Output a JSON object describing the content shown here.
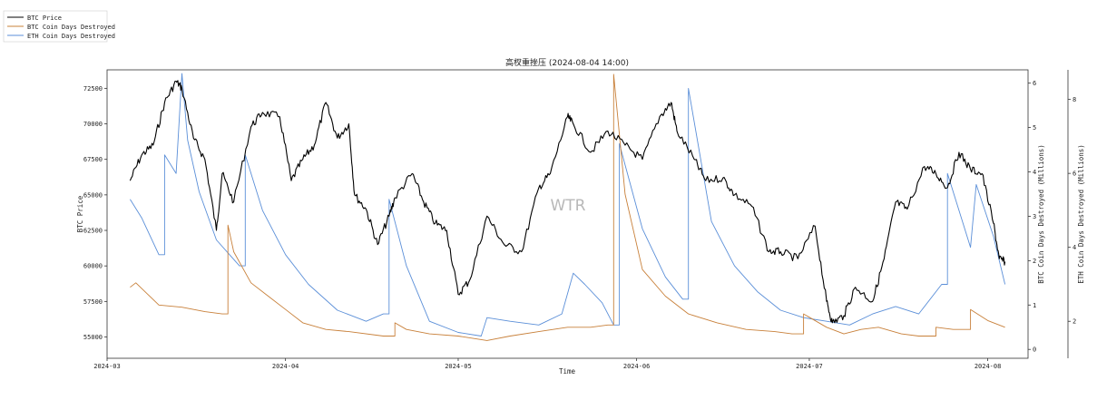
{
  "chart_data": {
    "type": "line",
    "title": "高杈重挫压 (2024-08-04 14:00)",
    "xlabel": "Time",
    "ylabel_left": "BTC Price",
    "ylabel_right1": "BTC Coin Days Destroyed (Millions)",
    "ylabel_right2": "ETH Coin Days Destroyed (Millions)",
    "watermark": "WTR",
    "legend_position": "top-left",
    "grid": false,
    "x_range": [
      "2024-03-01",
      "2024-08-08"
    ],
    "x_ticks": [
      "2024-03",
      "2024-04",
      "2024-05",
      "2024-06",
      "2024-07",
      "2024-08"
    ],
    "y_left": {
      "range": [
        53500,
        73800
      ],
      "ticks": [
        55000,
        57500,
        60000,
        62500,
        65000,
        67500,
        70000,
        72500
      ]
    },
    "y_right1": {
      "range": [
        -0.2,
        6.3
      ],
      "ticks": [
        0,
        1,
        2,
        3,
        4,
        5,
        6
      ]
    },
    "y_right2": {
      "range": [
        1.0,
        8.8
      ],
      "ticks": [
        2,
        4,
        6,
        8
      ]
    },
    "series": [
      {
        "name": "BTC Price",
        "axis": "left",
        "color": "#000000",
        "x": [
          "2024-03-05",
          "2024-03-07",
          "2024-03-09",
          "2024-03-11",
          "2024-03-13",
          "2024-03-14",
          "2024-03-16",
          "2024-03-18",
          "2024-03-20",
          "2024-03-21",
          "2024-03-23",
          "2024-03-26",
          "2024-03-28",
          "2024-03-31",
          "2024-04-02",
          "2024-04-04",
          "2024-04-06",
          "2024-04-08",
          "2024-04-10",
          "2024-04-12",
          "2024-04-13",
          "2024-04-15",
          "2024-04-17",
          "2024-04-19",
          "2024-04-20",
          "2024-04-23",
          "2024-04-25",
          "2024-04-27",
          "2024-04-29",
          "2024-05-01",
          "2024-05-03",
          "2024-05-06",
          "2024-05-09",
          "2024-05-12",
          "2024-05-15",
          "2024-05-17",
          "2024-05-20",
          "2024-05-21",
          "2024-05-24",
          "2024-05-27",
          "2024-05-30",
          "2024-06-02",
          "2024-06-05",
          "2024-06-07",
          "2024-06-08",
          "2024-06-11",
          "2024-06-13",
          "2024-06-16",
          "2024-06-18",
          "2024-06-21",
          "2024-06-24",
          "2024-06-26",
          "2024-06-29",
          "2024-07-02",
          "2024-07-04",
          "2024-07-05",
          "2024-07-07",
          "2024-07-09",
          "2024-07-12",
          "2024-07-14",
          "2024-07-16",
          "2024-07-18",
          "2024-07-21",
          "2024-07-23",
          "2024-07-25",
          "2024-07-27",
          "2024-07-29",
          "2024-07-31",
          "2024-08-02",
          "2024-08-03",
          "2024-08-04"
        ],
        "values": [
          66000,
          67800,
          68500,
          71500,
          73000,
          72500,
          69000,
          67500,
          62500,
          66500,
          64500,
          69800,
          70800,
          70500,
          66000,
          67500,
          68500,
          71500,
          69000,
          70000,
          65000,
          64000,
          61500,
          63500,
          64800,
          66500,
          64500,
          63000,
          62500,
          58000,
          59000,
          63500,
          61500,
          61000,
          65500,
          66500,
          70500,
          70000,
          68000,
          69500,
          68500,
          67500,
          70500,
          71500,
          69500,
          67500,
          66000,
          66200,
          65000,
          64200,
          61000,
          61000,
          60500,
          62800,
          57500,
          56000,
          56500,
          58500,
          57500,
          60500,
          64500,
          64000,
          67000,
          66500,
          65500,
          68000,
          66800,
          66500,
          63000,
          60500,
          60300
        ]
      },
      {
        "name": "BTC Coin Days Destroyed",
        "axis": "right1",
        "color": "#c8803a",
        "x": [
          "2024-03-05",
          "2024-03-06",
          "2024-03-10",
          "2024-03-14",
          "2024-03-18",
          "2024-03-21",
          "2024-03-22",
          "2024-03-23",
          "2024-03-26",
          "2024-03-29",
          "2024-04-01",
          "2024-04-04",
          "2024-04-08",
          "2024-04-12",
          "2024-04-18",
          "2024-04-20",
          "2024-04-22",
          "2024-04-26",
          "2024-05-01",
          "2024-05-06",
          "2024-05-10",
          "2024-05-15",
          "2024-05-20",
          "2024-05-24",
          "2024-05-27",
          "2024-05-28",
          "2024-05-30",
          "2024-06-02",
          "2024-06-06",
          "2024-06-10",
          "2024-06-15",
          "2024-06-20",
          "2024-06-25",
          "2024-06-28",
          "2024-06-30",
          "2024-07-04",
          "2024-07-07",
          "2024-07-10",
          "2024-07-13",
          "2024-07-17",
          "2024-07-20",
          "2024-07-23",
          "2024-07-26",
          "2024-07-29",
          "2024-08-01",
          "2024-08-04"
        ],
        "values": [
          1.4,
          1.5,
          1.0,
          0.95,
          0.85,
          0.8,
          2.8,
          2.2,
          1.5,
          1.2,
          0.9,
          0.6,
          0.45,
          0.4,
          0.3,
          0.6,
          0.45,
          0.35,
          0.3,
          0.2,
          0.3,
          0.4,
          0.5,
          0.5,
          0.55,
          6.2,
          3.5,
          1.8,
          1.2,
          0.8,
          0.6,
          0.45,
          0.4,
          0.35,
          0.8,
          0.5,
          0.35,
          0.45,
          0.5,
          0.35,
          0.3,
          0.5,
          0.45,
          0.9,
          0.65,
          0.5
        ]
      },
      {
        "name": "ETH Coin Days Destroyed",
        "axis": "right2",
        "color": "#5b8fd8",
        "x": [
          "2024-03-05",
          "2024-03-07",
          "2024-03-10",
          "2024-03-11",
          "2024-03-13",
          "2024-03-14",
          "2024-03-15",
          "2024-03-17",
          "2024-03-20",
          "2024-03-24",
          "2024-03-25",
          "2024-03-28",
          "2024-04-01",
          "2024-04-05",
          "2024-04-10",
          "2024-04-15",
          "2024-04-18",
          "2024-04-19",
          "2024-04-22",
          "2024-04-26",
          "2024-05-01",
          "2024-05-05",
          "2024-05-06",
          "2024-05-10",
          "2024-05-15",
          "2024-05-19",
          "2024-05-21",
          "2024-05-23",
          "2024-05-26",
          "2024-05-28",
          "2024-05-29",
          "2024-06-02",
          "2024-06-06",
          "2024-06-09",
          "2024-06-10",
          "2024-06-14",
          "2024-06-18",
          "2024-06-22",
          "2024-06-26",
          "2024-06-30",
          "2024-07-04",
          "2024-07-08",
          "2024-07-12",
          "2024-07-16",
          "2024-07-20",
          "2024-07-24",
          "2024-07-25",
          "2024-07-29",
          "2024-07-30",
          "2024-08-02",
          "2024-08-04"
        ],
        "values": [
          5.3,
          4.8,
          3.8,
          6.5,
          6.0,
          8.7,
          6.9,
          5.5,
          4.2,
          3.5,
          6.5,
          5.0,
          3.8,
          3.0,
          2.3,
          2.0,
          2.2,
          5.3,
          3.5,
          2.0,
          1.7,
          1.6,
          2.1,
          2.0,
          1.9,
          2.2,
          3.3,
          3.0,
          2.5,
          1.9,
          6.8,
          4.5,
          3.2,
          2.6,
          8.3,
          4.7,
          3.5,
          2.8,
          2.3,
          2.1,
          2.0,
          1.9,
          2.2,
          2.4,
          2.2,
          3.0,
          6.0,
          4.0,
          5.7,
          4.3,
          3.0
        ]
      }
    ]
  }
}
